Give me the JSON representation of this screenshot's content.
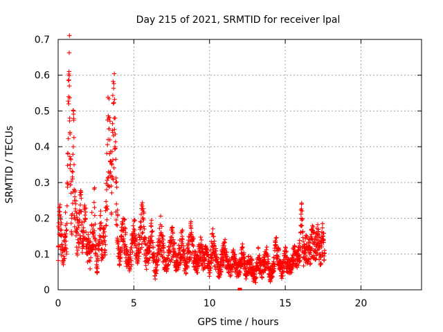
{
  "chart_data": {
    "type": "scatter",
    "title": "Day 215 of 2021, SRMTID for receiver lpal",
    "xlabel": "GPS time / hours",
    "ylabel": "SRMTID / TECUs",
    "xlim": [
      0,
      24
    ],
    "ylim": [
      0,
      0.7
    ],
    "x_ticks": [
      0,
      5,
      10,
      15,
      20
    ],
    "x_tick_labels": [
      "0",
      "5",
      "10",
      "15",
      "20"
    ],
    "y_ticks": [
      0,
      0.1,
      0.2,
      0.3,
      0.4,
      0.5,
      0.6,
      0.7
    ],
    "y_tick_labels": [
      "0",
      "0.1",
      "0.2",
      "0.3",
      "0.4",
      "0.5",
      "0.6",
      "0.7"
    ],
    "grid": true,
    "marker": "plus",
    "color": "#ff0000",
    "series": [
      {
        "name": "SRMTID",
        "x": [
          0.0,
          0.1,
          0.2,
          0.3,
          0.4,
          0.5,
          0.55,
          0.6,
          0.65,
          0.7,
          0.72,
          0.74,
          0.76,
          0.78,
          0.8,
          0.85,
          0.9,
          0.95,
          1.0,
          1.05,
          1.1,
          1.15,
          1.2,
          1.3,
          1.4,
          1.5,
          1.6,
          1.7,
          1.8,
          1.9,
          2.0,
          2.1,
          2.2,
          2.3,
          2.4,
          2.5,
          2.6,
          2.7,
          2.8,
          2.9,
          3.0,
          3.1,
          3.2,
          3.3,
          3.35,
          3.4,
          3.45,
          3.5,
          3.55,
          3.6,
          3.7,
          3.75,
          3.8,
          3.85,
          3.9,
          4.0,
          4.1,
          4.2,
          4.3,
          4.5,
          4.7,
          4.9,
          5.0,
          5.2,
          5.4,
          5.6,
          5.8,
          6.0,
          6.2,
          6.4,
          6.6,
          6.8,
          7.0,
          7.2,
          7.4,
          7.6,
          7.8,
          8.0,
          8.2,
          8.4,
          8.6,
          8.8,
          9.0,
          9.2,
          9.4,
          9.6,
          9.8,
          10.0,
          10.2,
          10.4,
          10.6,
          10.8,
          11.0,
          11.2,
          11.4,
          11.6,
          11.8,
          12.0,
          12.2,
          12.4,
          12.6,
          12.8,
          13.0,
          13.2,
          13.4,
          13.6,
          13.8,
          14.0,
          14.2,
          14.4,
          14.6,
          14.8,
          15.0,
          15.2,
          15.4,
          15.6,
          15.8,
          16.0,
          16.05,
          16.1,
          16.2,
          16.4,
          16.6,
          16.8,
          17.0,
          17.1,
          17.2,
          17.3,
          17.4,
          17.5,
          17.6
        ],
        "y": [
          0.12,
          0.21,
          0.15,
          0.08,
          0.11,
          0.18,
          0.1,
          0.3,
          0.38,
          0.52,
          0.61,
          0.57,
          0.48,
          0.44,
          0.35,
          0.27,
          0.2,
          0.31,
          0.4,
          0.35,
          0.26,
          0.22,
          0.17,
          0.14,
          0.19,
          0.22,
          0.12,
          0.16,
          0.2,
          0.1,
          0.14,
          0.08,
          0.18,
          0.12,
          0.23,
          0.1,
          0.06,
          0.13,
          0.17,
          0.09,
          0.15,
          0.11,
          0.28,
          0.42,
          0.45,
          0.38,
          0.33,
          0.29,
          0.35,
          0.44,
          0.48,
          0.4,
          0.3,
          0.24,
          0.18,
          0.12,
          0.08,
          0.15,
          0.2,
          0.1,
          0.06,
          0.13,
          0.17,
          0.1,
          0.14,
          0.2,
          0.08,
          0.12,
          0.15,
          0.05,
          0.1,
          0.16,
          0.09,
          0.06,
          0.12,
          0.14,
          0.07,
          0.1,
          0.13,
          0.06,
          0.11,
          0.15,
          0.09,
          0.07,
          0.12,
          0.08,
          0.1,
          0.06,
          0.13,
          0.09,
          0.05,
          0.08,
          0.11,
          0.07,
          0.06,
          0.09,
          0.05,
          0.07,
          0.1,
          0.04,
          0.08,
          0.06,
          0.03,
          0.09,
          0.05,
          0.07,
          0.1,
          0.04,
          0.06,
          0.12,
          0.08,
          0.05,
          0.09,
          0.07,
          0.06,
          0.1,
          0.08,
          0.12,
          0.2,
          0.18,
          0.09,
          0.12,
          0.1,
          0.14,
          0.11,
          0.15,
          0.13,
          0.1,
          0.12,
          0.15,
          0.11
        ],
        "outliers_low": [
          [
            12.0,
            0.0
          ]
        ]
      }
    ]
  }
}
